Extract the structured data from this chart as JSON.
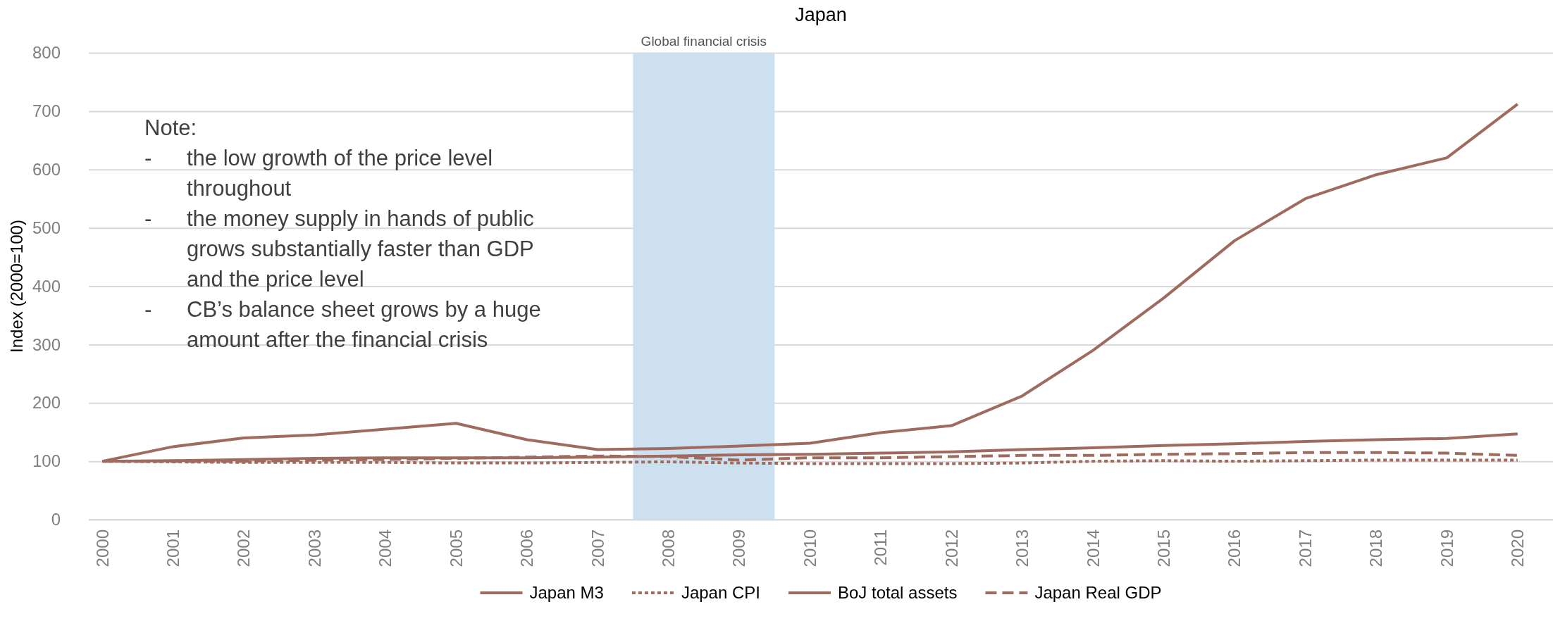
{
  "chart_data": {
    "type": "line",
    "title": "Japan",
    "ylabel": "Index (2000=100)",
    "categories": [
      "2000",
      "2001",
      "2002",
      "2003",
      "2004",
      "2005",
      "2006",
      "2007",
      "2008",
      "2009",
      "2010",
      "2011",
      "2012",
      "2013",
      "2014",
      "2015",
      "2016",
      "2017",
      "2018",
      "2019",
      "2020"
    ],
    "series": [
      {
        "name": "Japan M3",
        "color": "#9e6b5e",
        "line_style": "solid",
        "values": [
          100,
          101,
          103,
          105,
          106,
          106,
          106,
          107,
          109,
          111,
          112,
          114,
          116,
          120,
          123,
          127,
          130,
          134,
          137,
          139,
          147
        ]
      },
      {
        "name": "Japan CPI",
        "color": "#9e6b5e",
        "line_style": "dotted",
        "values": [
          100,
          99,
          98,
          98,
          98,
          97,
          97,
          98,
          99,
          97,
          96,
          96,
          96,
          97,
          100,
          101,
          100,
          101,
          102,
          102,
          102
        ]
      },
      {
        "name": "BoJ total assets",
        "color": "#9e6b5e",
        "line_style": "solid",
        "values": [
          100,
          125,
          140,
          145,
          155,
          165,
          137,
          120,
          122,
          126,
          131,
          149,
          161,
          212,
          290,
          380,
          478,
          550,
          591,
          620,
          712
        ]
      },
      {
        "name": "Japan Real GDP",
        "color": "#9e6b5e",
        "line_style": "dashed",
        "values": [
          100,
          100,
          100,
          102,
          103,
          105,
          107,
          109,
          108,
          102,
          106,
          106,
          108,
          110,
          110,
          112,
          113,
          115,
          115,
          114,
          110
        ]
      }
    ],
    "ylim": [
      0,
      800
    ],
    "yticks": [
      0,
      100,
      200,
      300,
      400,
      500,
      600,
      700,
      800
    ],
    "grid": "y",
    "legend": "bottom",
    "bands": [
      {
        "axis": "x",
        "from": "2008",
        "to": "2009",
        "label": "Global financial crisis",
        "color": "#cce0f0"
      }
    ],
    "annotations": [
      "Note:",
      "- the low growth of the price level throughout",
      "- the money supply in hands of public grows substantially faster than GDP and the price level",
      "- CB’s balance sheet grows by a huge amount after the financial crisis"
    ]
  }
}
